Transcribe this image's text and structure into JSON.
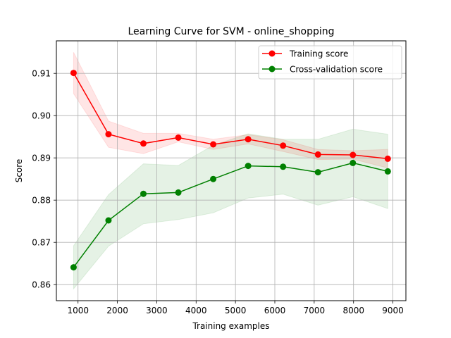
{
  "chart_data": {
    "type": "line",
    "title": "Learning Curve for SVM - online_shopping",
    "xlabel": "Training examples",
    "ylabel": "Score",
    "xlim": [
      450,
      9330
    ],
    "ylim": [
      0.8562,
      0.9177
    ],
    "xticks": [
      1000,
      2000,
      3000,
      4000,
      5000,
      6000,
      7000,
      8000,
      9000
    ],
    "xtick_labels": [
      "1000",
      "2000",
      "3000",
      "4000",
      "5000",
      "6000",
      "7000",
      "8000",
      "9000"
    ],
    "yticks": [
      0.86,
      0.87,
      0.88,
      0.89,
      0.9,
      0.91
    ],
    "ytick_labels": [
      "0.86",
      "0.87",
      "0.88",
      "0.89",
      "0.90",
      "0.91"
    ],
    "grid": true,
    "legend_position": "top-right",
    "x": [
      887,
      1774,
      2661,
      3548,
      4435,
      5322,
      6209,
      7096,
      7983,
      8870
    ],
    "series": [
      {
        "name": "Training score",
        "color": "#ff0000",
        "values": [
          0.9101,
          0.8956,
          0.8934,
          0.8948,
          0.8932,
          0.8944,
          0.8929,
          0.8908,
          0.8907,
          0.8898
        ],
        "std": [
          0.0049,
          0.0031,
          0.0024,
          0.001,
          0.0012,
          0.0011,
          0.0014,
          0.0012,
          0.001,
          0.0022
        ]
      },
      {
        "name": "Cross-validation score",
        "color": "#008000",
        "values": [
          0.8641,
          0.8752,
          0.8815,
          0.8818,
          0.885,
          0.8881,
          0.8879,
          0.8866,
          0.8888,
          0.8868
        ],
        "std": [
          0.0051,
          0.0061,
          0.0071,
          0.0064,
          0.008,
          0.0076,
          0.0065,
          0.0078,
          0.008,
          0.0088
        ]
      }
    ]
  }
}
